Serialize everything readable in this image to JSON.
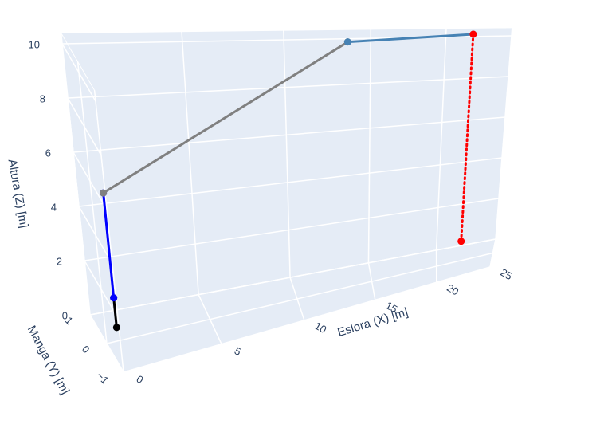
{
  "chart_data": {
    "type": "line3d",
    "xaxis_title": "Eslora (X) [m]",
    "yaxis_title": "Manga (Y) [m]",
    "zaxis_title": "Altura (Z) [m]",
    "xlim": [
      0,
      25
    ],
    "ylim": [
      -1,
      1
    ],
    "zlim": [
      0,
      10.4
    ],
    "xticks": [
      0,
      5,
      10,
      15,
      20,
      25
    ],
    "yticks": [
      {
        "value": -1,
        "label": "−1"
      },
      0,
      1
    ],
    "zticks": [
      0,
      2,
      4,
      6,
      8,
      10
    ],
    "grid": true,
    "series": [
      {
        "color": "#000000",
        "x": [
          0.5,
          0.5
        ],
        "y": [
          0,
          0
        ],
        "z": [
          0.5,
          1.6
        ]
      },
      {
        "color": "#0000ff",
        "x": [
          0.5,
          0.5
        ],
        "y": [
          0,
          0
        ],
        "z": [
          1.6,
          5.5
        ]
      },
      {
        "color": "#808080",
        "x": [
          0.5,
          13.5
        ],
        "y": [
          0,
          0.6
        ],
        "z": [
          5.5,
          10.2
        ]
      },
      {
        "color": "#4682b4",
        "x": [
          13.5,
          22
        ],
        "y": [
          0.6,
          0.6
        ],
        "z": [
          10.2,
          10.4
        ]
      },
      {
        "color": "#ff0000",
        "x": [
          22,
          22
        ],
        "y": [
          0.6,
          0.6
        ],
        "z": [
          10.4,
          0.5
        ],
        "dash": "dot"
      }
    ]
  }
}
